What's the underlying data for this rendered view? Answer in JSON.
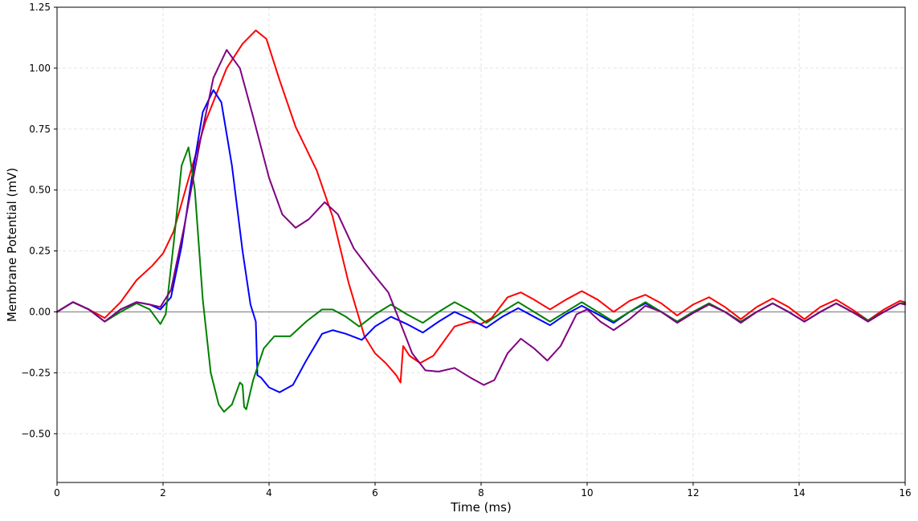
{
  "chart_data": {
    "type": "line",
    "title": "",
    "xlabel": "Time (ms)",
    "ylabel": "Membrane Potential (mV)",
    "xlim": [
      0,
      16
    ],
    "ylim": [
      -0.7,
      1.25
    ],
    "xticks": [
      0,
      2,
      4,
      6,
      8,
      10,
      12,
      14,
      16
    ],
    "yticks": [
      -0.5,
      -0.25,
      0.0,
      0.25,
      0.5,
      0.75,
      1.0,
      1.25
    ],
    "xtick_labels": [
      "0",
      "2",
      "4",
      "6",
      "8",
      "10",
      "12",
      "14",
      "16"
    ],
    "ytick_labels": [
      "−0.50",
      "−0.25",
      "0.00",
      "0.25",
      "0.50",
      "0.75",
      "1.00",
      "1.25"
    ],
    "grid": true,
    "baseline": 0,
    "series": [
      {
        "color": "#ff0000",
        "points": [
          [
            0,
            0
          ],
          [
            0.3,
            0.04
          ],
          [
            0.6,
            0.01
          ],
          [
            0.9,
            -0.025
          ],
          [
            1.2,
            0.04
          ],
          [
            1.5,
            0.13
          ],
          [
            1.8,
            0.19
          ],
          [
            2.0,
            0.24
          ],
          [
            2.2,
            0.33
          ],
          [
            2.5,
            0.56
          ],
          [
            2.8,
            0.78
          ],
          [
            3.2,
            1.0
          ],
          [
            3.5,
            1.1
          ],
          [
            3.75,
            1.155
          ],
          [
            3.95,
            1.12
          ],
          [
            4.2,
            0.95
          ],
          [
            4.5,
            0.76
          ],
          [
            4.9,
            0.58
          ],
          [
            5.2,
            0.39
          ],
          [
            5.5,
            0.12
          ],
          [
            5.8,
            -0.1
          ],
          [
            6.0,
            -0.17
          ],
          [
            6.2,
            -0.21
          ],
          [
            6.4,
            -0.26
          ],
          [
            6.48,
            -0.29
          ],
          [
            6.53,
            -0.14
          ],
          [
            6.65,
            -0.18
          ],
          [
            6.85,
            -0.21
          ],
          [
            7.1,
            -0.18
          ],
          [
            7.5,
            -0.06
          ],
          [
            7.8,
            -0.04
          ],
          [
            8.0,
            -0.05
          ],
          [
            8.2,
            -0.025
          ],
          [
            8.5,
            0.06
          ],
          [
            8.75,
            0.08
          ],
          [
            9.0,
            0.05
          ],
          [
            9.3,
            0.01
          ],
          [
            9.6,
            0.05
          ],
          [
            9.9,
            0.085
          ],
          [
            10.2,
            0.05
          ],
          [
            10.5,
            0.0
          ],
          [
            10.8,
            0.045
          ],
          [
            11.1,
            0.07
          ],
          [
            11.4,
            0.035
          ],
          [
            11.7,
            -0.015
          ],
          [
            12.0,
            0.03
          ],
          [
            12.3,
            0.06
          ],
          [
            12.6,
            0.02
          ],
          [
            12.9,
            -0.03
          ],
          [
            13.2,
            0.02
          ],
          [
            13.5,
            0.055
          ],
          [
            13.8,
            0.02
          ],
          [
            14.1,
            -0.03
          ],
          [
            14.4,
            0.02
          ],
          [
            14.7,
            0.05
          ],
          [
            15.0,
            0.01
          ],
          [
            15.3,
            -0.035
          ],
          [
            15.6,
            0.01
          ],
          [
            15.9,
            0.045
          ],
          [
            16.0,
            0.04
          ]
        ]
      },
      {
        "color": "#0000ff",
        "points": [
          [
            0,
            0
          ],
          [
            0.3,
            0.04
          ],
          [
            0.6,
            0.01
          ],
          [
            0.9,
            -0.04
          ],
          [
            1.2,
            0.01
          ],
          [
            1.5,
            0.04
          ],
          [
            1.75,
            0.03
          ],
          [
            1.95,
            0.01
          ],
          [
            2.15,
            0.06
          ],
          [
            2.35,
            0.27
          ],
          [
            2.55,
            0.56
          ],
          [
            2.75,
            0.82
          ],
          [
            2.95,
            0.91
          ],
          [
            3.1,
            0.86
          ],
          [
            3.3,
            0.6
          ],
          [
            3.5,
            0.25
          ],
          [
            3.65,
            0.03
          ],
          [
            3.75,
            -0.04
          ],
          [
            3.78,
            -0.26
          ],
          [
            3.85,
            -0.27
          ],
          [
            4.0,
            -0.31
          ],
          [
            4.2,
            -0.33
          ],
          [
            4.45,
            -0.3
          ],
          [
            4.7,
            -0.2
          ],
          [
            5.0,
            -0.09
          ],
          [
            5.2,
            -0.075
          ],
          [
            5.45,
            -0.09
          ],
          [
            5.75,
            -0.115
          ],
          [
            6.0,
            -0.06
          ],
          [
            6.3,
            -0.02
          ],
          [
            6.6,
            -0.05
          ],
          [
            6.9,
            -0.085
          ],
          [
            7.2,
            -0.04
          ],
          [
            7.5,
            0.0
          ],
          [
            7.8,
            -0.03
          ],
          [
            8.1,
            -0.065
          ],
          [
            8.4,
            -0.02
          ],
          [
            8.7,
            0.015
          ],
          [
            9.0,
            -0.02
          ],
          [
            9.3,
            -0.055
          ],
          [
            9.6,
            -0.01
          ],
          [
            9.9,
            0.025
          ],
          [
            10.2,
            -0.01
          ],
          [
            10.5,
            -0.045
          ],
          [
            10.8,
            0.0
          ],
          [
            11.1,
            0.035
          ],
          [
            11.4,
            0.0
          ],
          [
            11.7,
            -0.04
          ],
          [
            12.0,
            0.0
          ],
          [
            12.3,
            0.035
          ],
          [
            12.6,
            0.0
          ],
          [
            12.9,
            -0.04
          ],
          [
            13.2,
            0.0
          ],
          [
            13.5,
            0.035
          ],
          [
            13.8,
            0.0
          ],
          [
            14.1,
            -0.04
          ],
          [
            14.4,
            0.0
          ],
          [
            14.7,
            0.035
          ],
          [
            15.0,
            0.0
          ],
          [
            15.3,
            -0.035
          ],
          [
            15.6,
            0.0
          ],
          [
            15.9,
            0.035
          ],
          [
            16.0,
            0.035
          ]
        ]
      },
      {
        "color": "#008000",
        "points": [
          [
            0,
            0
          ],
          [
            0.3,
            0.04
          ],
          [
            0.6,
            0.01
          ],
          [
            0.9,
            -0.04
          ],
          [
            1.2,
            0.0
          ],
          [
            1.5,
            0.035
          ],
          [
            1.75,
            0.01
          ],
          [
            1.95,
            -0.05
          ],
          [
            2.05,
            -0.01
          ],
          [
            2.2,
            0.28
          ],
          [
            2.35,
            0.6
          ],
          [
            2.48,
            0.675
          ],
          [
            2.6,
            0.5
          ],
          [
            2.75,
            0.05
          ],
          [
            2.9,
            -0.25
          ],
          [
            3.05,
            -0.38
          ],
          [
            3.15,
            -0.41
          ],
          [
            3.3,
            -0.38
          ],
          [
            3.45,
            -0.29
          ],
          [
            3.5,
            -0.3
          ],
          [
            3.53,
            -0.39
          ],
          [
            3.57,
            -0.4
          ],
          [
            3.7,
            -0.28
          ],
          [
            3.9,
            -0.15
          ],
          [
            4.1,
            -0.1
          ],
          [
            4.4,
            -0.1
          ],
          [
            4.7,
            -0.04
          ],
          [
            5.0,
            0.01
          ],
          [
            5.2,
            0.01
          ],
          [
            5.45,
            -0.02
          ],
          [
            5.7,
            -0.06
          ],
          [
            6.0,
            -0.01
          ],
          [
            6.3,
            0.03
          ],
          [
            6.6,
            -0.01
          ],
          [
            6.9,
            -0.045
          ],
          [
            7.2,
            0.0
          ],
          [
            7.5,
            0.04
          ],
          [
            7.8,
            0.005
          ],
          [
            8.1,
            -0.045
          ],
          [
            8.4,
            0.0
          ],
          [
            8.7,
            0.04
          ],
          [
            9.0,
            0.0
          ],
          [
            9.3,
            -0.04
          ],
          [
            9.6,
            0.0
          ],
          [
            9.9,
            0.04
          ],
          [
            10.2,
            0.0
          ],
          [
            10.5,
            -0.04
          ],
          [
            10.8,
            0.0
          ],
          [
            11.1,
            0.04
          ],
          [
            11.4,
            0.0
          ],
          [
            11.7,
            -0.04
          ],
          [
            12.0,
            0.0
          ],
          [
            12.3,
            0.035
          ],
          [
            12.6,
            0.0
          ],
          [
            12.9,
            -0.04
          ],
          [
            13.2,
            0.0
          ],
          [
            13.5,
            0.035
          ],
          [
            13.8,
            0.0
          ],
          [
            14.1,
            -0.04
          ],
          [
            14.4,
            0.0
          ],
          [
            14.7,
            0.035
          ],
          [
            15.0,
            0.0
          ],
          [
            15.3,
            -0.035
          ],
          [
            15.6,
            0.0
          ],
          [
            15.9,
            0.035
          ],
          [
            16.0,
            0.035
          ]
        ]
      },
      {
        "color": "#800080",
        "points": [
          [
            0,
            0
          ],
          [
            0.3,
            0.04
          ],
          [
            0.6,
            0.01
          ],
          [
            0.9,
            -0.04
          ],
          [
            1.2,
            0.01
          ],
          [
            1.5,
            0.04
          ],
          [
            1.75,
            0.03
          ],
          [
            1.95,
            0.02
          ],
          [
            2.15,
            0.09
          ],
          [
            2.4,
            0.35
          ],
          [
            2.7,
            0.7
          ],
          [
            2.95,
            0.96
          ],
          [
            3.2,
            1.075
          ],
          [
            3.45,
            1.0
          ],
          [
            3.7,
            0.8
          ],
          [
            4.0,
            0.55
          ],
          [
            4.25,
            0.4
          ],
          [
            4.5,
            0.345
          ],
          [
            4.75,
            0.38
          ],
          [
            5.05,
            0.45
          ],
          [
            5.3,
            0.4
          ],
          [
            5.6,
            0.26
          ],
          [
            5.95,
            0.16
          ],
          [
            6.25,
            0.08
          ],
          [
            6.45,
            -0.03
          ],
          [
            6.7,
            -0.17
          ],
          [
            6.95,
            -0.24
          ],
          [
            7.2,
            -0.245
          ],
          [
            7.5,
            -0.23
          ],
          [
            7.8,
            -0.27
          ],
          [
            8.05,
            -0.3
          ],
          [
            8.25,
            -0.28
          ],
          [
            8.5,
            -0.17
          ],
          [
            8.75,
            -0.11
          ],
          [
            9.0,
            -0.15
          ],
          [
            9.25,
            -0.2
          ],
          [
            9.5,
            -0.14
          ],
          [
            9.8,
            -0.01
          ],
          [
            10.0,
            0.01
          ],
          [
            10.25,
            -0.04
          ],
          [
            10.5,
            -0.075
          ],
          [
            10.8,
            -0.03
          ],
          [
            11.1,
            0.025
          ],
          [
            11.4,
            0.0
          ],
          [
            11.7,
            -0.045
          ],
          [
            12.0,
            -0.005
          ],
          [
            12.3,
            0.03
          ],
          [
            12.6,
            0.0
          ],
          [
            12.9,
            -0.045
          ],
          [
            13.2,
            0.0
          ],
          [
            13.5,
            0.035
          ],
          [
            13.8,
            0.0
          ],
          [
            14.1,
            -0.04
          ],
          [
            14.4,
            0.0
          ],
          [
            14.7,
            0.035
          ],
          [
            15.0,
            0.0
          ],
          [
            15.3,
            -0.04
          ],
          [
            15.6,
            0.0
          ],
          [
            15.9,
            0.035
          ],
          [
            16.0,
            0.03
          ]
        ]
      }
    ]
  }
}
